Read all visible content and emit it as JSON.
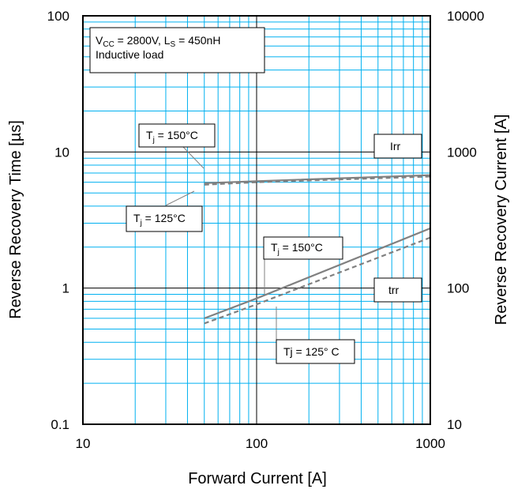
{
  "chart_data": {
    "type": "line",
    "xlabel": "Forward Current [A]",
    "ylabel_left": "Reverse Recovery Time [µs]",
    "ylabel_right": "Reverse Recovery Current [A]",
    "x_scale": "log",
    "y_scale": "log",
    "xlim": [
      10,
      1000
    ],
    "ylim_left": [
      0.1,
      100
    ],
    "ylim_right": [
      10,
      10000
    ],
    "x_ticks": [
      "10",
      "100",
      "1000"
    ],
    "y_ticks_left": [
      "0.1",
      "1",
      "10",
      "100"
    ],
    "y_ticks_right": [
      "10",
      "100",
      "1000",
      "10000"
    ],
    "grid": true,
    "grid_color": "#00b0f0",
    "series": [
      {
        "curve": "Irr",
        "condition": "Tj = 150°C",
        "axis": "right",
        "style": "solid",
        "color": "#808080",
        "x": [
          50,
          100,
          1000
        ],
        "y": [
          590,
          610,
          675
        ]
      },
      {
        "curve": "Irr",
        "condition": "Tj = 125°C",
        "axis": "right",
        "style": "dashed",
        "color": "#808080",
        "x": [
          50,
          100,
          1000
        ],
        "y": [
          575,
          600,
          660
        ]
      },
      {
        "curve": "trr",
        "condition": "Tj = 150°C",
        "axis": "left",
        "style": "solid",
        "color": "#808080",
        "x": [
          50,
          100,
          1000
        ],
        "y": [
          0.6,
          0.84,
          2.75
        ]
      },
      {
        "curve": "trr",
        "condition": "Tj = 125°C",
        "axis": "left",
        "style": "dashed",
        "color": "#808080",
        "x": [
          50,
          100,
          1000
        ],
        "y": [
          0.55,
          0.76,
          2.35
        ]
      }
    ],
    "conditions": {
      "vcc": "2800V",
      "ls": "450nH",
      "load": "Inductive load"
    },
    "annotations": {
      "irr_label": "Irr",
      "trr_label": "trr",
      "irr_tj150": "150°C",
      "irr_tj125": "125°C",
      "trr_tj150": "150°C",
      "trr_tj125": "Tj = 125°  C"
    }
  }
}
